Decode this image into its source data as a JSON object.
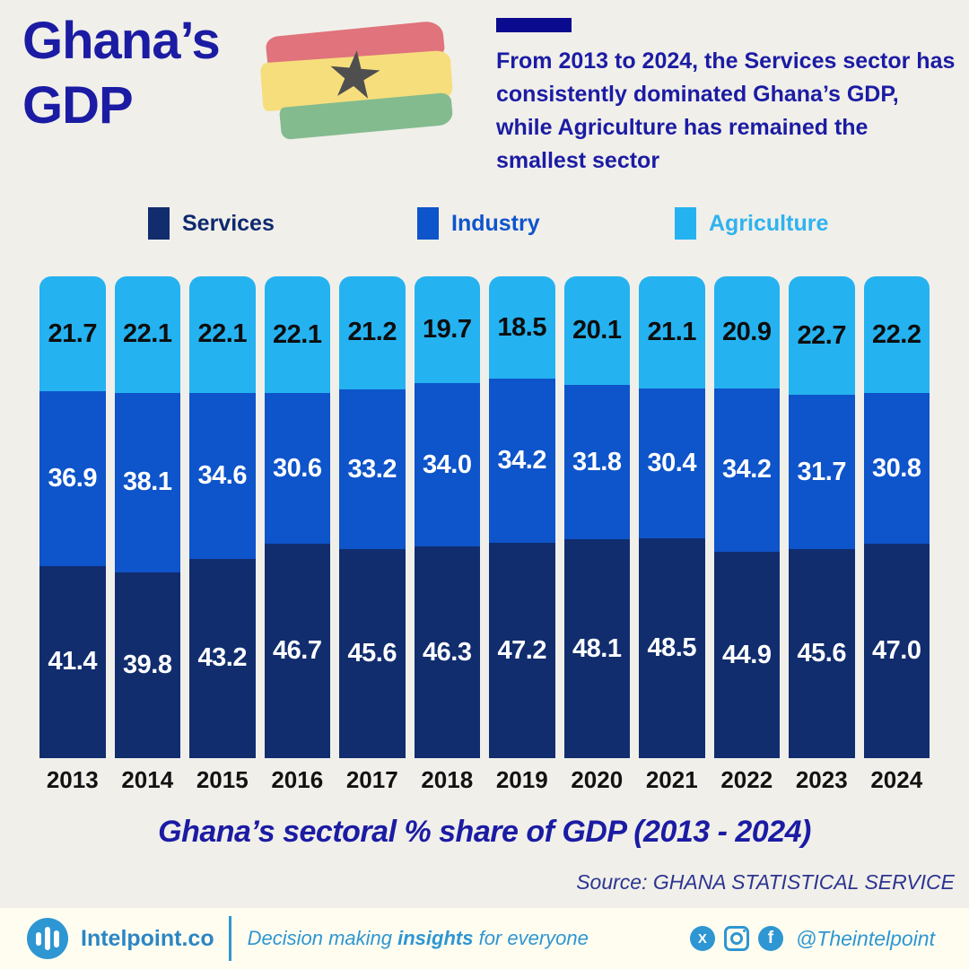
{
  "header": {
    "title_line1": "Ghana’s",
    "title_line2": "GDP",
    "description": "From 2013 to 2024, the Services sector has consistently dominated Ghana’s GDP, while Agriculture has remained the smallest sector",
    "flag_icon": "ghana-flag-icon",
    "flag_colors": {
      "red": "#e0737b",
      "yellow": "#f6de7c",
      "green": "#83bb8f",
      "star": "#4f4f4f"
    },
    "star_glyph": "★"
  },
  "legend": [
    {
      "label": "Services",
      "swatch_color": "#112d6e",
      "label_color": "#0d2a6e"
    },
    {
      "label": "Industry",
      "swatch_color": "#0e54ca",
      "label_color": "#0d55cc"
    },
    {
      "label": "Agriculture",
      "swatch_color": "#25b2f0",
      "label_color": "#2eb3ef"
    }
  ],
  "chart_data": {
    "type": "bar",
    "stacked": true,
    "unit": "%",
    "ylim": [
      0,
      100
    ],
    "grid": false,
    "legend_position": "top",
    "categories": [
      "2013",
      "2014",
      "2015",
      "2016",
      "2017",
      "2018",
      "2019",
      "2020",
      "2021",
      "2022",
      "2023",
      "2024"
    ],
    "series": [
      {
        "name": "Services",
        "color": "#112d6e",
        "label_color": "#ffffff",
        "values": [
          41.4,
          39.8,
          43.2,
          46.7,
          45.6,
          46.3,
          47.2,
          48.1,
          48.5,
          44.9,
          45.6,
          47.0
        ]
      },
      {
        "name": "Industry",
        "color": "#0e54ca",
        "label_color": "#ffffff",
        "values": [
          36.9,
          38.1,
          34.6,
          30.6,
          33.2,
          34.0,
          34.2,
          31.8,
          30.4,
          34.2,
          31.7,
          30.8
        ]
      },
      {
        "name": "Agriculture",
        "color": "#25b2f0",
        "label_color": "#0d0d0d",
        "values": [
          21.7,
          22.1,
          22.1,
          22.1,
          21.2,
          19.7,
          18.5,
          20.1,
          21.1,
          20.9,
          22.7,
          22.2
        ]
      }
    ],
    "title": "Ghana’s sectoral % share of GDP (2013 - 2024)",
    "xlabel": "",
    "ylabel": ""
  },
  "caption": "Ghana’s sectoral % share of GDP (2013 - 2024)",
  "source": "Source: GHANA STATISTICAL SERVICE",
  "footer": {
    "brand": "Intelpoint.co",
    "logo_icon": "bar-chart-icon",
    "tagline_prefix": "Decision making ",
    "tagline_bold": "insights",
    "tagline_suffix": " for everyone",
    "social_icons": [
      "x-icon",
      "instagram-icon",
      "facebook-icon"
    ],
    "x_glyph": "X",
    "facebook_glyph": "f",
    "handle": "@Theintelpoint",
    "accent_color": "#2e96d2"
  }
}
